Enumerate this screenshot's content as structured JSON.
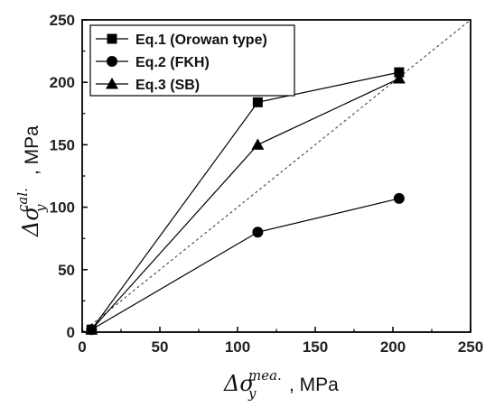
{
  "chart_data": {
    "type": "scatter",
    "xlabel": {
      "symbol": "Δσ",
      "sub": "y",
      "sup": "mea.",
      "unit": ", MPa"
    },
    "ylabel": {
      "symbol": "Δσ",
      "sub": "y",
      "sup": "cal.",
      "unit": ", MPa"
    },
    "xlim": [
      0,
      250
    ],
    "ylim": [
      0,
      250
    ],
    "xticks": [
      "0",
      "50",
      "100",
      "150",
      "200",
      "250"
    ],
    "yticks": [
      "0",
      "50",
      "100",
      "150",
      "200",
      "250"
    ],
    "grid": false,
    "legend_position": "top-left",
    "reference_line": {
      "style": "dashed",
      "from": [
        0,
        0
      ],
      "to": [
        250,
        250
      ]
    },
    "series": [
      {
        "name": "Eq.1 (Orowan type)",
        "marker": "square",
        "x": [
          6,
          113,
          204
        ],
        "y": [
          2,
          184,
          208
        ]
      },
      {
        "name": "Eq.2 (FKH)",
        "marker": "circle",
        "x": [
          6,
          113,
          204
        ],
        "y": [
          2,
          80,
          107
        ]
      },
      {
        "name": "Eq.3 (SB)",
        "marker": "triangle",
        "x": [
          6,
          113,
          204
        ],
        "y": [
          2,
          150,
          203
        ]
      }
    ]
  }
}
